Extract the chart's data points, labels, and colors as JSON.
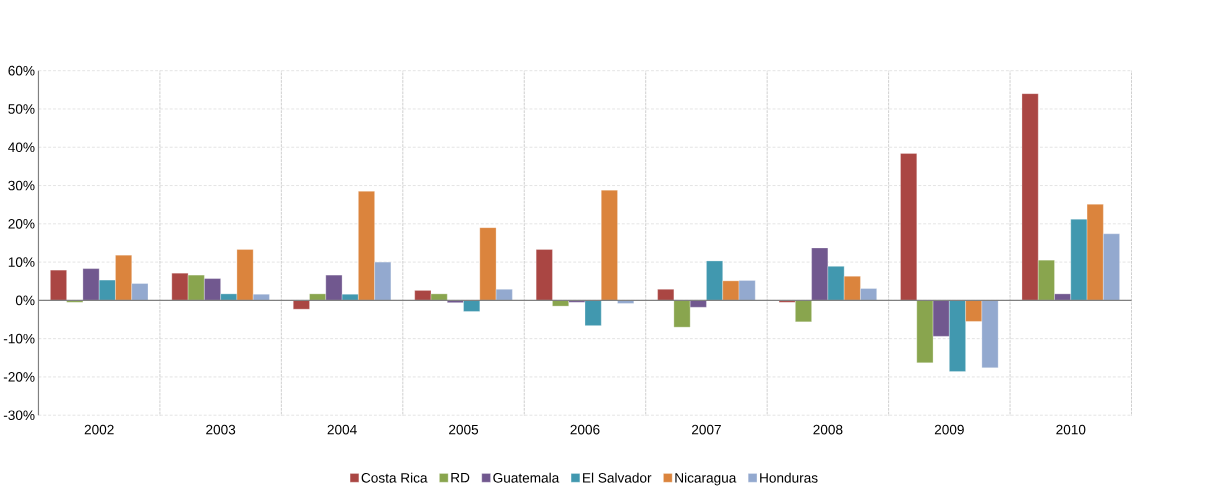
{
  "chart_data": {
    "type": "bar",
    "categories": [
      "2002",
      "2003",
      "2004",
      "2005",
      "2006",
      "2007",
      "2008",
      "2009",
      "2010"
    ],
    "series": [
      {
        "name": "Costa Rica",
        "color": "#aa4643",
        "values": [
          7.9,
          7.1,
          -2.3,
          2.6,
          13.3,
          2.9,
          -0.5,
          38.4,
          54.0
        ]
      },
      {
        "name": "RD",
        "color": "#89a54e",
        "values": [
          -0.5,
          6.6,
          1.7,
          1.7,
          -1.5,
          -7.0,
          -5.6,
          -16.3,
          10.5
        ]
      },
      {
        "name": "Guatemala",
        "color": "#71588f",
        "values": [
          8.3,
          5.7,
          6.6,
          -0.6,
          -0.5,
          -1.8,
          13.7,
          -9.4,
          1.7
        ]
      },
      {
        "name": "El Salvador",
        "color": "#4198af",
        "values": [
          5.3,
          1.7,
          1.6,
          -2.9,
          -6.6,
          10.3,
          8.9,
          -18.6,
          21.2
        ]
      },
      {
        "name": "Nicaragua",
        "color": "#db843d",
        "values": [
          11.8,
          13.3,
          28.5,
          19.0,
          28.8,
          5.1,
          6.3,
          -5.5,
          25.1
        ]
      },
      {
        "name": "Honduras",
        "color": "#93a9cf",
        "values": [
          4.4,
          1.6,
          10.0,
          2.9,
          -0.8,
          5.2,
          3.1,
          -17.6,
          17.4
        ]
      }
    ],
    "ylim": [
      -30,
      60
    ],
    "yticks": [
      {
        "value": -30,
        "label": "-30%"
      },
      {
        "value": -20,
        "label": "-20%"
      },
      {
        "value": -10,
        "label": "-10%"
      },
      {
        "value": 0,
        "label": "0%"
      },
      {
        "value": 10,
        "label": "10%"
      },
      {
        "value": 20,
        "label": "20%"
      },
      {
        "value": 30,
        "label": "30%"
      },
      {
        "value": 40,
        "label": "40%"
      },
      {
        "value": 50,
        "label": "50%"
      },
      {
        "value": 60,
        "label": "60%"
      }
    ],
    "grid": true,
    "legend": "bottom"
  }
}
